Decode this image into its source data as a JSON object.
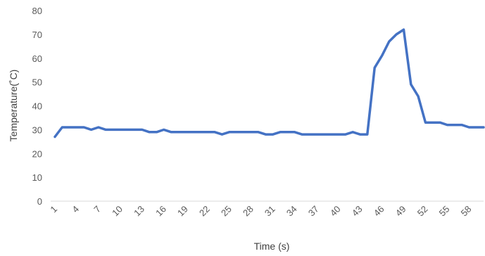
{
  "chart_data": {
    "type": "line",
    "title": "",
    "xlabel": "Time (s)",
    "ylabel": "Temperature(˚C)",
    "ylim": [
      0,
      80
    ],
    "yticks": [
      0,
      10,
      20,
      30,
      40,
      50,
      60,
      70,
      80
    ],
    "xticks": [
      1,
      4,
      7,
      10,
      13,
      16,
      19,
      22,
      25,
      28,
      31,
      34,
      37,
      40,
      43,
      46,
      49,
      52,
      55,
      58
    ],
    "grid": false,
    "legend": "none",
    "line_color": "#4472C4",
    "x": [
      1,
      2,
      3,
      4,
      5,
      6,
      7,
      8,
      9,
      10,
      11,
      12,
      13,
      14,
      15,
      16,
      17,
      18,
      19,
      20,
      21,
      22,
      23,
      24,
      25,
      26,
      27,
      28,
      29,
      30,
      31,
      32,
      33,
      34,
      35,
      36,
      37,
      38,
      39,
      40,
      41,
      42,
      43,
      44,
      45,
      46,
      47,
      48,
      49,
      50,
      51,
      52,
      53,
      54,
      55,
      56,
      57,
      58,
      59,
      60
    ],
    "series": [
      {
        "values": [
          27,
          31,
          31,
          31,
          31,
          30,
          31,
          30,
          30,
          30,
          30,
          30,
          30,
          29,
          29,
          30,
          29,
          29,
          29,
          29,
          29,
          29,
          29,
          28,
          29,
          29,
          29,
          29,
          29,
          28,
          28,
          29,
          29,
          29,
          28,
          28,
          28,
          28,
          28,
          28,
          28,
          29,
          28,
          28,
          56,
          61,
          67,
          70,
          72,
          49,
          44,
          33,
          33,
          33,
          32,
          32,
          32,
          31,
          31,
          31
        ]
      }
    ]
  }
}
